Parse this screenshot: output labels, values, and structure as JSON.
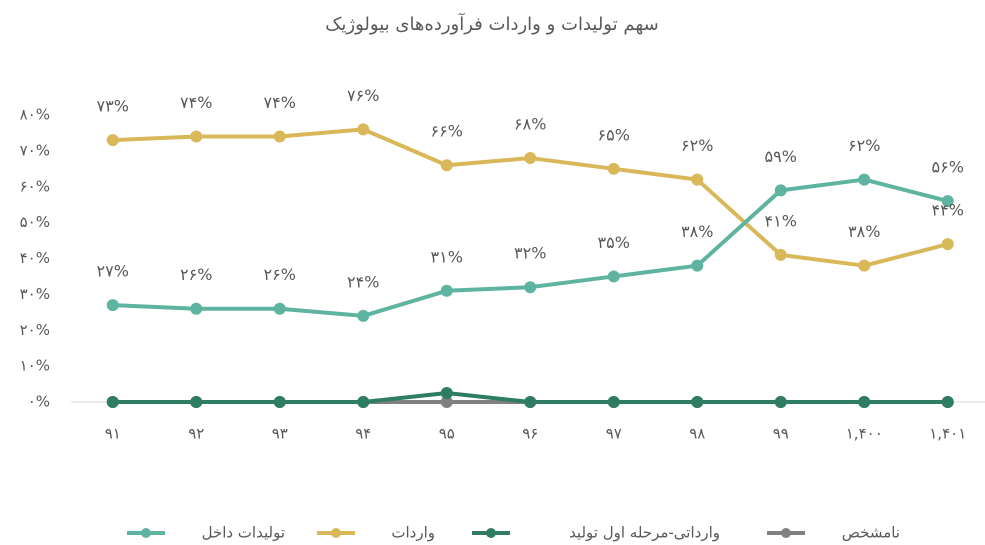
{
  "chart_data": {
    "type": "line",
    "title": "سهم تولیدات و واردات فرآورده‌های بیولوژیک",
    "categories": [
      "۹۱",
      "۹۲",
      "۹۳",
      "۹۴",
      "۹۵",
      "۹۶",
      "۹۷",
      "۹۸",
      "۹۹",
      "۱,۴۰۰",
      "۱,۴۰۱"
    ],
    "series": [
      {
        "name": "تولیدات داخل",
        "color": "#5fb3a1",
        "values": [
          27,
          26,
          26,
          24,
          31,
          32,
          35,
          38,
          59,
          62,
          56
        ],
        "value_labels": [
          "۲۷%",
          "۲۶%",
          "۲۶%",
          "۲۴%",
          "۳۱%",
          "۳۲%",
          "۳۵%",
          "۳۸%",
          "۵۹%",
          "۶۲%",
          "۵۶%"
        ]
      },
      {
        "name": "واردات",
        "color": "#d9b85a",
        "values": [
          73,
          74,
          74,
          76,
          66,
          68,
          65,
          62,
          41,
          38,
          44
        ],
        "value_labels": [
          "۷۳%",
          "۷۴%",
          "۷۴%",
          "۷۶%",
          "۶۶%",
          "۶۸%",
          "۶۵%",
          "۶۲%",
          "۴۱%",
          "۳۸%",
          "۴۴%"
        ]
      },
      {
        "name": "وارداتی-مرحله اول تولید",
        "color": "#2e7d62",
        "values": [
          0,
          0,
          0,
          0,
          2.5,
          0,
          0,
          0,
          0,
          0,
          0
        ]
      },
      {
        "name": "نامشخص",
        "color": "#808080",
        "values": [
          0,
          0,
          0,
          0,
          0,
          0,
          0,
          0,
          0,
          0,
          0
        ]
      }
    ],
    "ylim": [
      0,
      80
    ],
    "yticks": [
      {
        "value": 0,
        "label": "۰%"
      },
      {
        "value": 10,
        "label": "۱۰%"
      },
      {
        "value": 20,
        "label": "۲۰%"
      },
      {
        "value": 30,
        "label": "۳۰%"
      },
      {
        "value": 40,
        "label": "۴۰%"
      },
      {
        "value": 50,
        "label": "۵۰%"
      },
      {
        "value": 60,
        "label": "۶۰%"
      },
      {
        "value": 70,
        "label": "۷۰%"
      },
      {
        "value": 80,
        "label": "۸۰%"
      }
    ],
    "grid": false,
    "legend": "bottom"
  }
}
